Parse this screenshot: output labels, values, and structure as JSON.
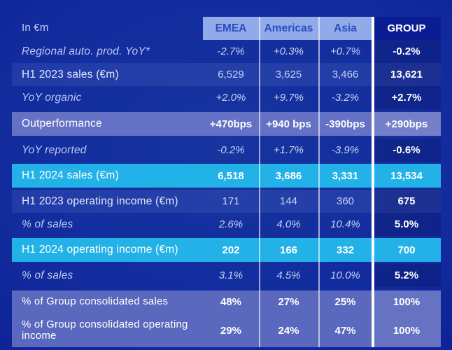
{
  "table": {
    "unit_label": "In €m",
    "columns": [
      "EMEA",
      "Americas",
      "Asia",
      "GROUP"
    ],
    "rows": [
      {
        "label": "Regional auto. prod. YoY*",
        "style": "italic",
        "values": [
          "-2.7%",
          "+0.3%",
          "+0.7%",
          "-0.2%"
        ]
      },
      {
        "label": "H1 2023 sales (€m)",
        "style": "subtle",
        "values": [
          "6,529",
          "3,625",
          "3,466",
          "13,621"
        ]
      },
      {
        "label": "YoY organic",
        "style": "italic",
        "values": [
          "+2.0%",
          "+9.7%",
          "-3.2%",
          "+2.7%"
        ]
      },
      {
        "label": "Outperformance",
        "style": "highlight",
        "values": [
          "+470bps",
          "+940 bps",
          "-390bps",
          "+290bps"
        ]
      },
      {
        "label": "YoY reported",
        "style": "italic",
        "values": [
          "-0.2%",
          "+1.7%",
          "-3.9%",
          "-0.6%"
        ]
      },
      {
        "label": "H1 2024 sales (€m)",
        "style": "cyan",
        "values": [
          "6,518",
          "3,686",
          "3,331",
          "13,534"
        ]
      },
      {
        "label": "H1 2023 operating income (€m)",
        "style": "subtle",
        "values": [
          "171",
          "144",
          "360",
          "675"
        ]
      },
      {
        "label": "% of sales",
        "style": "italic",
        "values": [
          "2.6%",
          "4.0%",
          "10.4%",
          "5.0%"
        ]
      },
      {
        "label": "H1 2024 operating income (€m)",
        "style": "cyan",
        "values": [
          "202",
          "166",
          "332",
          "700"
        ]
      },
      {
        "label": "% of sales",
        "style": "italic",
        "values": [
          "3.1%",
          "4.5%",
          "10.0%",
          "5.2%"
        ]
      },
      {
        "label": "% of Group consolidated sales",
        "style": "gband first",
        "values": [
          "48%",
          "27%",
          "25%",
          "100%"
        ]
      },
      {
        "label": "% of Group  consolidated operating income",
        "style": "gband last",
        "values": [
          "29%",
          "24%",
          "47%",
          "100%"
        ]
      }
    ]
  },
  "colors": {
    "background": "#10289c",
    "accent_cyan": "#23b2e8",
    "band_periwinkle": "#6571c4",
    "bottom_band": "#5a68be",
    "header_light_blue": "#92abe8",
    "header_text_blue": "#2b4cc0",
    "header_navy": "#0a1d94",
    "value_text": "#c8d2f4",
    "bold_value_text": "#ffffff"
  }
}
